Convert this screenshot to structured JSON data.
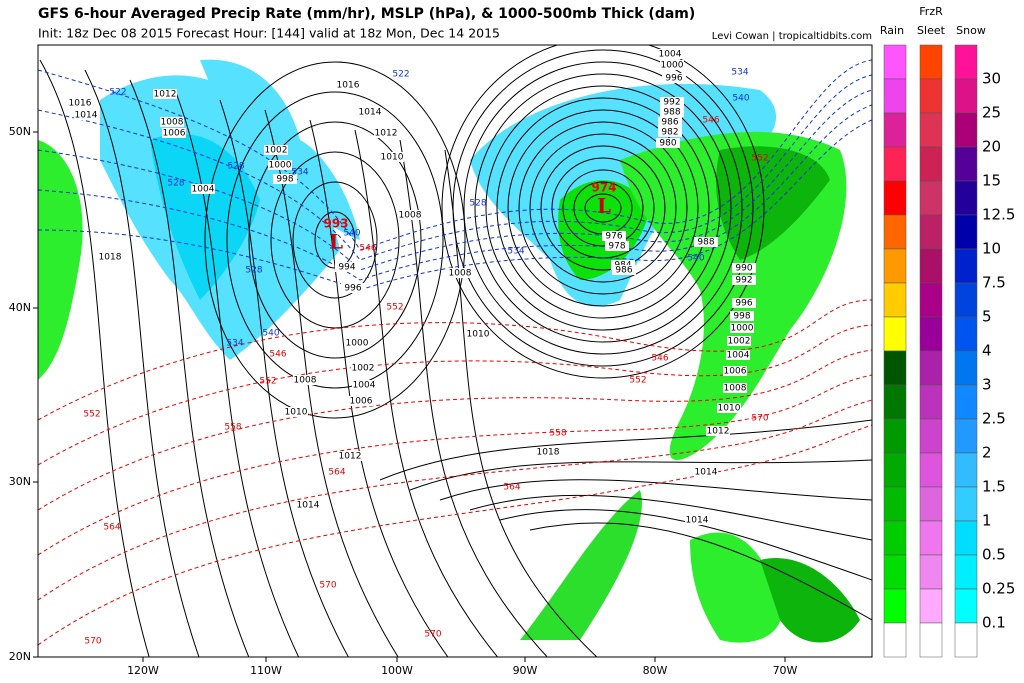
{
  "header": {
    "title": "GFS 6-hour Averaged Precip Rate (mm/hr), MSLP (hPa), & 1000-500mb Thick (dam)",
    "subtitle": "Init: 18z Dec 08 2015   Forecast Hour: [144]   valid at 18z Mon, Dec 14 2015",
    "credit": "Levi Cowan | tropicaltidbits.com"
  },
  "legend": {
    "headers": [
      "Rain",
      "FrzR",
      "Sleet",
      "Snow"
    ],
    "ticks": [
      "30",
      "25",
      "20",
      "15",
      "12.5",
      "10",
      "7.5",
      "5",
      "4",
      "3",
      "2.5",
      "2",
      "1.5",
      "1",
      "0.5",
      "0.25",
      "0.1"
    ]
  },
  "map": {
    "lon_labels": [
      "120W",
      "110W",
      "100W",
      "90W",
      "80W",
      "70W"
    ],
    "lat_labels": [
      "50N",
      "40N",
      "30N",
      "20N"
    ],
    "lows": [
      {
        "pressure": "993",
        "symbol": "L"
      },
      {
        "pressure": "974",
        "symbol": "L"
      }
    ],
    "isobar_labels": [
      "1016",
      "1014",
      "1012",
      "1008",
      "1006",
      "1016",
      "1014",
      "1012",
      "1010",
      "1002",
      "1000",
      "998",
      "1004",
      "1008",
      "1008",
      "1010",
      "994",
      "996",
      "1000",
      "1002",
      "1004",
      "1006",
      "1008",
      "1010",
      "1012",
      "1014",
      "1018",
      "1018",
      "1014",
      "1014",
      "976",
      "978",
      "984",
      "986",
      "988",
      "990",
      "992",
      "996",
      "998",
      "1000",
      "1002",
      "1004",
      "1006",
      "1008",
      "1010",
      "1012",
      "980",
      "982",
      "986",
      "988",
      "992",
      "996",
      "1000",
      "1004"
    ],
    "thickness_labels": [
      "546",
      "552",
      "546",
      "552",
      "558",
      "552",
      "564",
      "564",
      "558",
      "546",
      "552",
      "570",
      "564",
      "570",
      "570",
      "570",
      "552",
      "546",
      "522",
      "528",
      "528",
      "534",
      "540",
      "528",
      "540",
      "534",
      "528",
      "534",
      "540",
      "534",
      "540",
      "522"
    ]
  }
}
